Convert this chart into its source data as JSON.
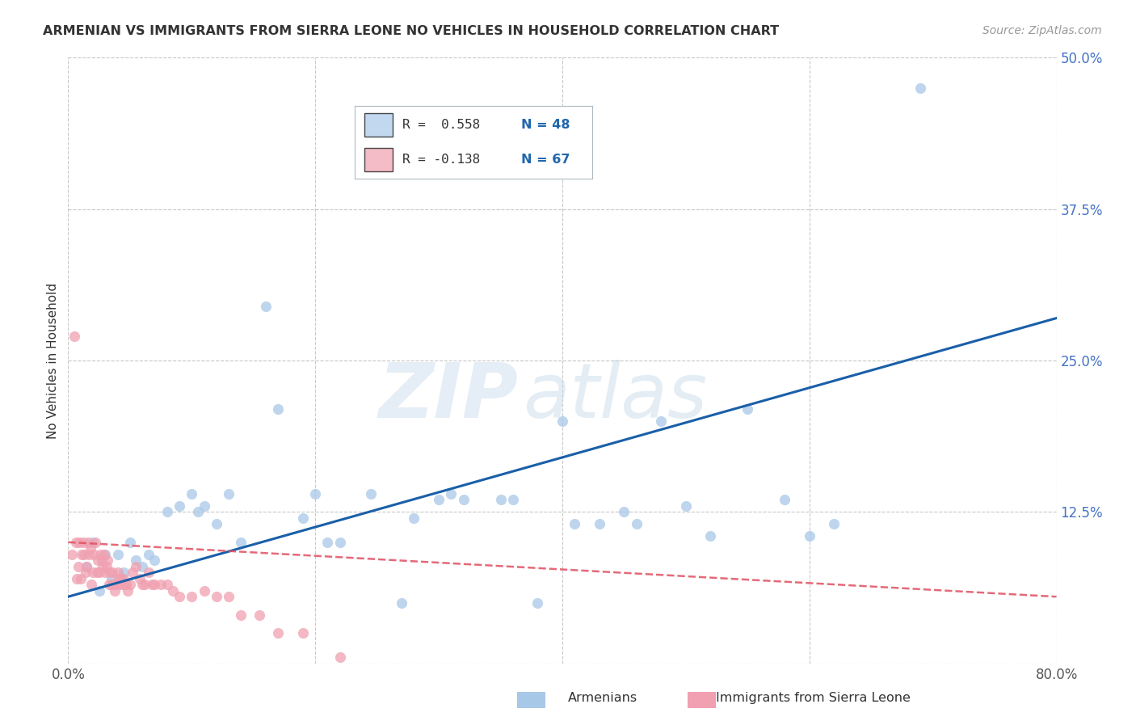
{
  "title": "ARMENIAN VS IMMIGRANTS FROM SIERRA LEONE NO VEHICLES IN HOUSEHOLD CORRELATION CHART",
  "source": "Source: ZipAtlas.com",
  "ylabel": "No Vehicles in Household",
  "xlim": [
    0.0,
    0.8
  ],
  "ylim": [
    0.0,
    0.5
  ],
  "xticks": [
    0.0,
    0.2,
    0.4,
    0.6,
    0.8
  ],
  "yticks": [
    0.0,
    0.125,
    0.25,
    0.375,
    0.5
  ],
  "grid_color": "#c8c8c8",
  "background_color": "#ffffff",
  "watermark_line1": "ZIP",
  "watermark_line2": "atlas",
  "legend_R1": "R =  0.558",
  "legend_N1": "N = 48",
  "legend_R2": "R = -0.138",
  "legend_N2": "N = 67",
  "armenian_color": "#a8c8e8",
  "sierra_leone_color": "#f0a0b0",
  "line_armenian_color": "#1a5fa8",
  "line_sierra_leone_color": "#e05060",
  "armenian_scatter_x": [
    0.015,
    0.02,
    0.025,
    0.03,
    0.035,
    0.04,
    0.045,
    0.05,
    0.055,
    0.06,
    0.065,
    0.07,
    0.08,
    0.09,
    0.1,
    0.105,
    0.11,
    0.12,
    0.13,
    0.14,
    0.16,
    0.17,
    0.19,
    0.2,
    0.21,
    0.22,
    0.245,
    0.27,
    0.28,
    0.3,
    0.31,
    0.32,
    0.35,
    0.36,
    0.38,
    0.4,
    0.41,
    0.43,
    0.45,
    0.46,
    0.48,
    0.5,
    0.52,
    0.55,
    0.58,
    0.6,
    0.62,
    0.69
  ],
  "armenian_scatter_y": [
    0.08,
    0.1,
    0.06,
    0.09,
    0.07,
    0.09,
    0.075,
    0.1,
    0.085,
    0.08,
    0.09,
    0.085,
    0.125,
    0.13,
    0.14,
    0.125,
    0.13,
    0.115,
    0.14,
    0.1,
    0.295,
    0.21,
    0.12,
    0.14,
    0.1,
    0.1,
    0.14,
    0.05,
    0.12,
    0.135,
    0.14,
    0.135,
    0.135,
    0.135,
    0.05,
    0.2,
    0.115,
    0.115,
    0.125,
    0.115,
    0.2,
    0.13,
    0.105,
    0.21,
    0.135,
    0.105,
    0.115,
    0.475
  ],
  "sierra_leone_scatter_x": [
    0.003,
    0.005,
    0.006,
    0.007,
    0.008,
    0.009,
    0.01,
    0.011,
    0.012,
    0.013,
    0.014,
    0.015,
    0.016,
    0.017,
    0.018,
    0.019,
    0.02,
    0.021,
    0.022,
    0.023,
    0.024,
    0.025,
    0.026,
    0.027,
    0.028,
    0.029,
    0.03,
    0.031,
    0.032,
    0.033,
    0.034,
    0.035,
    0.036,
    0.037,
    0.038,
    0.039,
    0.04,
    0.041,
    0.042,
    0.043,
    0.044,
    0.045,
    0.046,
    0.047,
    0.048,
    0.05,
    0.052,
    0.055,
    0.058,
    0.06,
    0.062,
    0.065,
    0.068,
    0.07,
    0.075,
    0.08,
    0.085,
    0.09,
    0.1,
    0.11,
    0.12,
    0.13,
    0.14,
    0.155,
    0.17,
    0.19,
    0.22
  ],
  "sierra_leone_scatter_y": [
    0.09,
    0.27,
    0.1,
    0.07,
    0.08,
    0.1,
    0.07,
    0.09,
    0.1,
    0.09,
    0.075,
    0.08,
    0.1,
    0.09,
    0.095,
    0.065,
    0.075,
    0.09,
    0.1,
    0.075,
    0.085,
    0.075,
    0.09,
    0.085,
    0.08,
    0.09,
    0.075,
    0.08,
    0.085,
    0.065,
    0.075,
    0.065,
    0.075,
    0.065,
    0.06,
    0.065,
    0.075,
    0.07,
    0.065,
    0.07,
    0.065,
    0.07,
    0.065,
    0.065,
    0.06,
    0.065,
    0.075,
    0.08,
    0.07,
    0.065,
    0.065,
    0.075,
    0.065,
    0.065,
    0.065,
    0.065,
    0.06,
    0.055,
    0.055,
    0.06,
    0.055,
    0.055,
    0.04,
    0.04,
    0.025,
    0.025,
    0.005
  ],
  "armenian_trend_x": [
    0.0,
    0.8
  ],
  "armenian_trend_y": [
    0.055,
    0.285
  ],
  "sierra_leone_trend_x": [
    0.0,
    0.8
  ],
  "sierra_leone_trend_y": [
    0.1,
    0.055
  ]
}
